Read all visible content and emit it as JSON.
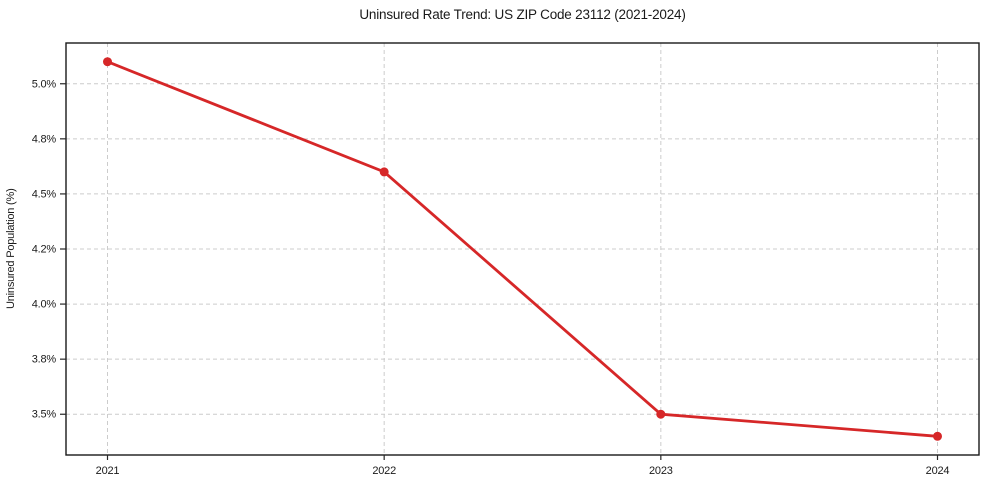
{
  "chart_data": {
    "type": "line",
    "title": "Uninsured Rate Trend: US ZIP Code 23112 (2021-2024)",
    "xlabel": "",
    "ylabel": "Uninsured Population (%)",
    "x": [
      2021,
      2022,
      2023,
      2024
    ],
    "x_tick_labels": [
      "2021",
      "2022",
      "2023",
      "2024"
    ],
    "values": [
      5.1,
      4.6,
      3.5,
      3.4
    ],
    "y_ticks": [
      5.0,
      4.75,
      4.5,
      4.25,
      4.0,
      3.75,
      3.5
    ],
    "y_tick_labels": [
      "5.0%",
      "4.8%",
      "4.5%",
      "4.2%",
      "4.0%",
      "3.8%",
      "3.5%"
    ],
    "xlim": [
      2020.85,
      2024.15
    ],
    "ylim": [
      3.315,
      5.185
    ],
    "grid": true,
    "legend": false,
    "colors": {
      "line": "#d62728",
      "marker": "#d62728",
      "grid": "#cccccc",
      "spine": "#1a1a1a",
      "tick": "#262626",
      "text": "#1a1a1a",
      "background": "#ffffff"
    }
  }
}
